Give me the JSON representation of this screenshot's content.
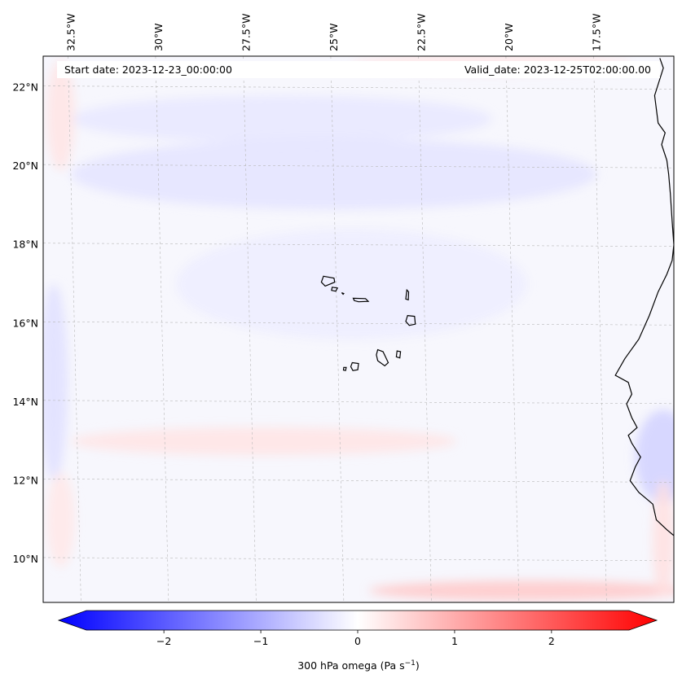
{
  "map": {
    "start_label": "Start date: 2023-12-23_00:00:00",
    "valid_label": "Valid_date: 2023-12-25T02:00:00.00",
    "extent": {
      "lon_min": -33.3,
      "lon_max": -15.3,
      "lat_min": 8.9,
      "lat_max": 22.8
    },
    "lon_ticks": [
      {
        "value": -32.5,
        "label": "32.5°W"
      },
      {
        "value": -30.0,
        "label": "30°W"
      },
      {
        "value": -27.5,
        "label": "27.5°W"
      },
      {
        "value": -25.0,
        "label": "25°W"
      },
      {
        "value": -22.5,
        "label": "22.5°W"
      },
      {
        "value": -20.0,
        "label": "20°W"
      },
      {
        "value": -17.5,
        "label": "17.5°W"
      }
    ],
    "lat_ticks": [
      {
        "value": 22,
        "label": "22°N"
      },
      {
        "value": 20,
        "label": "20°N"
      },
      {
        "value": 18,
        "label": "18°N"
      },
      {
        "value": 16,
        "label": "16°N"
      },
      {
        "value": 14,
        "label": "14°N"
      },
      {
        "value": 12,
        "label": "12°N"
      },
      {
        "value": 10,
        "label": "10°N"
      }
    ],
    "field_features": [
      {
        "name": "blue-band-north",
        "lon": -25.0,
        "lat": 19.8,
        "rx_deg": 7.5,
        "ry_deg": 0.9,
        "value": -0.3
      },
      {
        "name": "blue-band-upper",
        "lon": -26.5,
        "lat": 21.2,
        "rx_deg": 6.0,
        "ry_deg": 0.6,
        "value": -0.25
      },
      {
        "name": "blue-center",
        "lon": -24.5,
        "lat": 17.0,
        "rx_deg": 5.0,
        "ry_deg": 1.4,
        "value": -0.2
      },
      {
        "name": "blue-west-edge",
        "lon": -33.0,
        "lat": 14.5,
        "rx_deg": 0.4,
        "ry_deg": 2.5,
        "value": -0.35
      },
      {
        "name": "blue-southeast-coast",
        "lon": -15.6,
        "lat": 12.6,
        "rx_deg": 0.8,
        "ry_deg": 1.2,
        "value": -0.5
      },
      {
        "name": "red-band-13n",
        "lon": -27.0,
        "lat": 13.0,
        "rx_deg": 5.5,
        "ry_deg": 0.35,
        "value": 0.3
      },
      {
        "name": "red-band-south",
        "lon": -19.5,
        "lat": 9.2,
        "rx_deg": 4.5,
        "ry_deg": 0.25,
        "value": 0.6
      },
      {
        "name": "red-band-22n",
        "lon": -20.5,
        "lat": 22.6,
        "rx_deg": 4.0,
        "ry_deg": 0.25,
        "value": 0.25
      },
      {
        "name": "red-west-upper",
        "lon": -32.8,
        "lat": 21.3,
        "rx_deg": 0.4,
        "ry_deg": 1.4,
        "value": 0.3
      },
      {
        "name": "red-east-edge",
        "lon": -15.6,
        "lat": 10.5,
        "rx_deg": 0.3,
        "ry_deg": 1.5,
        "value": 0.35
      },
      {
        "name": "red-west-south",
        "lon": -32.8,
        "lat": 11.0,
        "rx_deg": 0.4,
        "ry_deg": 1.2,
        "value": 0.25
      }
    ],
    "islands": [
      {
        "name": "santo-antao",
        "points": [
          [
            -25.3,
            17.2
          ],
          [
            -25.0,
            17.15
          ],
          [
            -24.98,
            17.05
          ],
          [
            -25.25,
            16.95
          ],
          [
            -25.36,
            17.05
          ]
        ]
      },
      {
        "name": "sao-vicente",
        "points": [
          [
            -25.05,
            16.92
          ],
          [
            -24.9,
            16.9
          ],
          [
            -24.95,
            16.82
          ],
          [
            -25.07,
            16.84
          ]
        ]
      },
      {
        "name": "santa-luzia",
        "points": [
          [
            -24.78,
            16.78
          ],
          [
            -24.72,
            16.76
          ],
          [
            -24.74,
            16.74
          ]
        ]
      },
      {
        "name": "sao-nicolau",
        "points": [
          [
            -24.45,
            16.64
          ],
          [
            -24.1,
            16.63
          ],
          [
            -24.02,
            16.56
          ],
          [
            -24.3,
            16.55
          ],
          [
            -24.42,
            16.58
          ]
        ]
      },
      {
        "name": "sal",
        "points": [
          [
            -22.92,
            16.85
          ],
          [
            -22.87,
            16.8
          ],
          [
            -22.88,
            16.6
          ],
          [
            -22.95,
            16.62
          ]
        ]
      },
      {
        "name": "boa-vista",
        "points": [
          [
            -22.9,
            16.2
          ],
          [
            -22.7,
            16.18
          ],
          [
            -22.68,
            15.98
          ],
          [
            -22.85,
            15.95
          ],
          [
            -22.95,
            16.05
          ]
        ]
      },
      {
        "name": "maio",
        "points": [
          [
            -23.2,
            15.3
          ],
          [
            -23.1,
            15.28
          ],
          [
            -23.12,
            15.12
          ],
          [
            -23.22,
            15.15
          ]
        ]
      },
      {
        "name": "santiago",
        "points": [
          [
            -23.75,
            15.33
          ],
          [
            -23.6,
            15.28
          ],
          [
            -23.45,
            15.0
          ],
          [
            -23.55,
            14.92
          ],
          [
            -23.75,
            15.05
          ],
          [
            -23.79,
            15.2
          ]
        ]
      },
      {
        "name": "fogo",
        "points": [
          [
            -24.48,
            15.0
          ],
          [
            -24.3,
            14.98
          ],
          [
            -24.32,
            14.82
          ],
          [
            -24.46,
            14.8
          ],
          [
            -24.52,
            14.9
          ]
        ]
      },
      {
        "name": "brava",
        "points": [
          [
            -24.72,
            14.88
          ],
          [
            -24.65,
            14.88
          ],
          [
            -24.67,
            14.8
          ],
          [
            -24.73,
            14.81
          ]
        ]
      }
    ],
    "coastline": [
      [
        -15.7,
        22.75
      ],
      [
        -15.6,
        22.5
      ],
      [
        -15.85,
        21.8
      ],
      [
        -15.75,
        21.1
      ],
      [
        -15.55,
        20.85
      ],
      [
        -15.65,
        20.55
      ],
      [
        -15.5,
        20.15
      ],
      [
        -15.45,
        19.8
      ],
      [
        -15.4,
        19.3
      ],
      [
        -15.35,
        18.6
      ],
      [
        -15.3,
        18.0
      ],
      [
        -15.35,
        17.6
      ],
      [
        -15.5,
        17.25
      ],
      [
        -15.75,
        16.8
      ],
      [
        -16.0,
        16.2
      ],
      [
        -16.3,
        15.6
      ],
      [
        -16.7,
        15.1
      ],
      [
        -16.97,
        14.68
      ],
      [
        -16.6,
        14.5
      ],
      [
        -16.5,
        14.2
      ],
      [
        -16.65,
        13.95
      ],
      [
        -16.5,
        13.6
      ],
      [
        -16.35,
        13.35
      ],
      [
        -16.6,
        13.15
      ],
      [
        -16.5,
        12.95
      ],
      [
        -16.25,
        12.6
      ],
      [
        -16.4,
        12.35
      ],
      [
        -16.55,
        12.0
      ],
      [
        -16.3,
        11.7
      ],
      [
        -15.9,
        11.4
      ],
      [
        -15.8,
        11.0
      ],
      [
        -15.5,
        10.75
      ],
      [
        -15.3,
        10.6
      ]
    ]
  },
  "colorbar": {
    "label": "300 hPa omega (Pa s",
    "label_sup": "−1",
    "label_close": ")",
    "vmin": -2.8,
    "vmax": 2.8,
    "tick_values": [
      -2,
      -1,
      0,
      1,
      2
    ],
    "tick_labels": [
      "−2",
      "−1",
      "0",
      "1",
      "2"
    ],
    "low_color": "#0000ff",
    "mid_color": "#ffffff",
    "high_color": "#ff0000"
  },
  "colors": {
    "background_field": "#f7f7fd",
    "gridline": "#b8b8b8",
    "coastline": "#000000"
  }
}
